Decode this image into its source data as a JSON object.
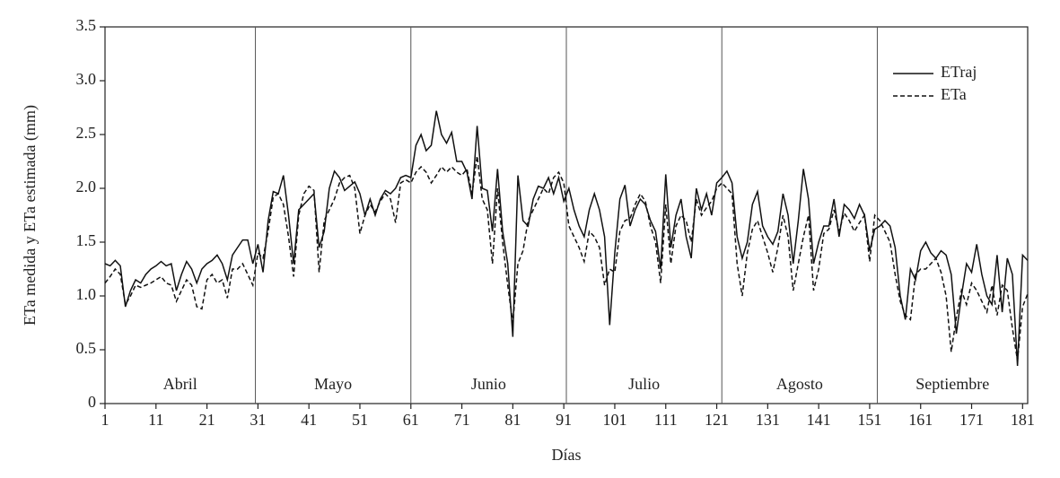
{
  "chart_data": {
    "type": "line",
    "x_label": "Días",
    "y_label": "ETa medida y ETa estimada (mm)",
    "x": [
      1,
      2,
      3,
      4,
      5,
      6,
      7,
      8,
      9,
      10,
      11,
      12,
      13,
      14,
      15,
      16,
      17,
      18,
      19,
      20,
      21,
      22,
      23,
      24,
      25,
      26,
      27,
      28,
      29,
      30,
      31,
      32,
      33,
      34,
      35,
      36,
      37,
      38,
      39,
      40,
      41,
      42,
      43,
      44,
      45,
      46,
      47,
      48,
      49,
      50,
      51,
      52,
      53,
      54,
      55,
      56,
      57,
      58,
      59,
      60,
      61,
      62,
      63,
      64,
      65,
      66,
      67,
      68,
      69,
      70,
      71,
      72,
      73,
      74,
      75,
      76,
      77,
      78,
      79,
      80,
      81,
      82,
      83,
      84,
      85,
      86,
      87,
      88,
      89,
      90,
      91,
      92,
      93,
      94,
      95,
      96,
      97,
      98,
      99,
      100,
      101,
      102,
      103,
      104,
      105,
      106,
      107,
      108,
      109,
      110,
      111,
      112,
      113,
      114,
      115,
      116,
      117,
      118,
      119,
      120,
      121,
      122,
      123,
      124,
      125,
      126,
      127,
      128,
      129,
      130,
      131,
      132,
      133,
      134,
      135,
      136,
      137,
      138,
      139,
      140,
      141,
      142,
      143,
      144,
      145,
      146,
      147,
      148,
      149,
      150,
      151,
      152,
      153,
      154,
      155,
      156,
      157,
      158,
      159,
      160,
      161,
      162,
      163,
      164,
      165,
      166,
      167,
      168,
      169,
      170,
      171,
      172,
      173,
      174,
      175,
      176,
      177,
      178,
      179,
      180,
      181,
      182
    ],
    "series": [
      {
        "name": "ETraj",
        "color": "#111111",
        "dash": false,
        "values": [
          1.3,
          1.28,
          1.33,
          1.28,
          0.9,
          1.05,
          1.15,
          1.12,
          1.2,
          1.25,
          1.28,
          1.32,
          1.28,
          1.3,
          1.05,
          1.2,
          1.32,
          1.25,
          1.12,
          1.25,
          1.3,
          1.33,
          1.38,
          1.3,
          1.15,
          1.38,
          1.45,
          1.52,
          1.52,
          1.3,
          1.48,
          1.22,
          1.7,
          1.97,
          1.95,
          2.12,
          1.75,
          1.3,
          1.8,
          1.85,
          1.9,
          1.95,
          1.45,
          1.6,
          2.0,
          2.16,
          2.1,
          1.98,
          2.02,
          2.06,
          1.95,
          1.75,
          1.9,
          1.75,
          1.9,
          1.98,
          1.95,
          2.0,
          2.1,
          2.12,
          2.1,
          2.4,
          2.5,
          2.35,
          2.4,
          2.72,
          2.5,
          2.42,
          2.52,
          2.25,
          2.25,
          2.15,
          1.9,
          2.58,
          2.0,
          1.98,
          1.6,
          2.18,
          1.6,
          1.3,
          0.62,
          2.12,
          1.7,
          1.65,
          1.9,
          2.02,
          2.0,
          2.1,
          1.95,
          2.1,
          1.88,
          2.0,
          1.8,
          1.65,
          1.55,
          1.8,
          1.95,
          1.8,
          1.55,
          0.73,
          1.4,
          1.9,
          2.03,
          1.65,
          1.8,
          1.9,
          1.85,
          1.7,
          1.6,
          1.25,
          2.13,
          1.45,
          1.75,
          1.9,
          1.55,
          1.35,
          2.0,
          1.8,
          1.95,
          1.75,
          2.05,
          2.1,
          2.16,
          2.05,
          1.55,
          1.35,
          1.5,
          1.85,
          1.97,
          1.65,
          1.55,
          1.48,
          1.6,
          1.95,
          1.75,
          1.3,
          1.7,
          2.18,
          1.9,
          1.3,
          1.5,
          1.65,
          1.65,
          1.9,
          1.55,
          1.85,
          1.8,
          1.72,
          1.85,
          1.75,
          1.42,
          1.62,
          1.65,
          1.7,
          1.65,
          1.45,
          1.0,
          0.78,
          1.25,
          1.15,
          1.42,
          1.5,
          1.4,
          1.35,
          1.42,
          1.38,
          1.2,
          0.65,
          1.0,
          1.3,
          1.22,
          1.48,
          1.2,
          1.0,
          0.92,
          1.38,
          0.85,
          1.35,
          1.2,
          0.35,
          1.38,
          1.33
        ]
      },
      {
        "name": "ETa",
        "color": "#111111",
        "dash": true,
        "values": [
          1.12,
          1.18,
          1.25,
          1.2,
          0.92,
          1.0,
          1.1,
          1.08,
          1.1,
          1.12,
          1.15,
          1.18,
          1.12,
          1.1,
          0.95,
          1.05,
          1.15,
          1.1,
          0.9,
          0.88,
          1.15,
          1.2,
          1.12,
          1.15,
          0.98,
          1.25,
          1.25,
          1.3,
          1.2,
          1.1,
          1.4,
          1.35,
          1.6,
          1.92,
          1.95,
          1.85,
          1.55,
          1.18,
          1.75,
          1.95,
          2.02,
          1.98,
          1.22,
          1.7,
          1.8,
          1.9,
          2.05,
          2.1,
          2.12,
          2.0,
          1.58,
          1.75,
          1.85,
          1.78,
          1.88,
          1.95,
          1.9,
          1.68,
          2.05,
          2.08,
          2.05,
          2.15,
          2.2,
          2.15,
          2.05,
          2.12,
          2.2,
          2.15,
          2.2,
          2.15,
          2.12,
          2.18,
          1.95,
          2.3,
          1.9,
          1.8,
          1.3,
          2.0,
          1.5,
          1.1,
          0.75,
          1.3,
          1.42,
          1.7,
          1.8,
          1.9,
          2.0,
          1.95,
          2.1,
          2.15,
          2.05,
          1.65,
          1.55,
          1.45,
          1.32,
          1.6,
          1.55,
          1.45,
          1.1,
          1.25,
          1.22,
          1.6,
          1.7,
          1.72,
          1.85,
          1.95,
          1.88,
          1.65,
          1.5,
          1.12,
          1.85,
          1.3,
          1.65,
          1.75,
          1.7,
          1.5,
          1.9,
          1.75,
          1.82,
          1.88,
          2.0,
          2.05,
          2.0,
          1.95,
          1.3,
          1.0,
          1.4,
          1.62,
          1.7,
          1.55,
          1.4,
          1.22,
          1.45,
          1.75,
          1.55,
          1.05,
          1.3,
          1.55,
          1.75,
          1.05,
          1.25,
          1.58,
          1.62,
          1.8,
          1.6,
          1.77,
          1.7,
          1.6,
          1.68,
          1.75,
          1.32,
          1.75,
          1.7,
          1.6,
          1.5,
          1.2,
          0.95,
          0.82,
          0.78,
          1.2,
          1.25,
          1.25,
          1.3,
          1.35,
          1.22,
          1.0,
          0.48,
          0.8,
          1.05,
          0.92,
          1.12,
          1.05,
          0.95,
          0.85,
          1.1,
          0.82,
          1.1,
          1.05,
          0.7,
          0.4,
          0.9,
          1.02
        ]
      }
    ],
    "xlim": [
      1,
      182
    ],
    "ylim": [
      0,
      3.5
    ],
    "xticks": [
      1,
      11,
      21,
      31,
      41,
      51,
      61,
      71,
      81,
      91,
      101,
      111,
      121,
      131,
      141,
      151,
      161,
      171,
      181
    ],
    "yticks": [
      0,
      0.5,
      {
        "value": 1,
        "label": "1.0"
      },
      1.5,
      {
        "value": 2,
        "label": "2.0"
      },
      2.5,
      {
        "value": 3,
        "label": "3.0"
      },
      3.5
    ],
    "month_boundaries": [
      30.5,
      61,
      91.5,
      122,
      152.5
    ],
    "month_labels": [
      "Abril",
      "Mayo",
      "Junio",
      "Julio",
      "Agosto",
      "Septiembre"
    ],
    "legend": "top-right"
  }
}
